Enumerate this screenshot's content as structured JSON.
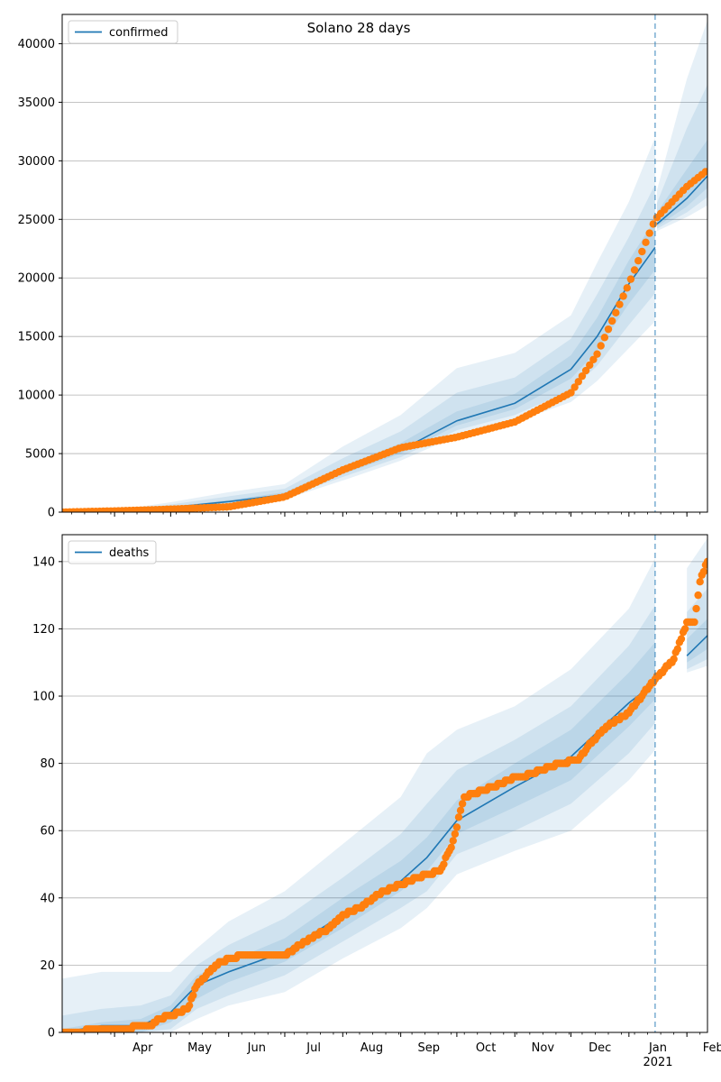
{
  "figure": {
    "title": "Solano 28 days"
  },
  "x_axis": {
    "months": [
      "Apr",
      "May",
      "Jun",
      "Jul",
      "Aug",
      "Sep",
      "Oct",
      "Nov",
      "Dec",
      "Jan",
      "Feb"
    ],
    "year_label": "2021"
  },
  "chart_data": [
    {
      "type": "line",
      "name": "confirmed",
      "legend": "confirmed",
      "legend_position": "upper-left",
      "x_range": [
        "2020-03-04",
        "2021-02-12"
      ],
      "y_range": [
        0,
        42500
      ],
      "y_ticks": [
        0,
        5000,
        10000,
        15000,
        20000,
        25000,
        30000,
        35000,
        40000
      ],
      "grid": "horizontal",
      "forecast_start": "2021-01-15",
      "model": {
        "dates": [
          "2020-03-04",
          "2020-04-01",
          "2020-05-01",
          "2020-06-01",
          "2020-07-01",
          "2020-08-01",
          "2020-09-01",
          "2020-10-01",
          "2020-11-01",
          "2020-12-01",
          "2020-12-15",
          "2021-01-01",
          "2021-01-15",
          "2021-01-16",
          "2021-02-01",
          "2021-02-12"
        ],
        "values": [
          0,
          100,
          400,
          900,
          1500,
          3500,
          5300,
          7800,
          9300,
          12200,
          15000,
          19500,
          22600,
          24600,
          26800,
          28700
        ],
        "bands": [
          {
            "lower": [
              0,
              80,
              250,
              600,
              1100,
              2700,
              4400,
              6500,
              7700,
              9400,
              11200,
              14000,
              16300,
              24000,
              25200,
              26200
            ],
            "upper": [
              0,
              150,
              850,
              1700,
              2400,
              5600,
              8300,
              12300,
              13600,
              16800,
              21300,
              26500,
              32000,
              27500,
              37000,
              42000
            ]
          },
          {
            "lower": [
              0,
              90,
              310,
              720,
              1250,
              3000,
              4700,
              7000,
              8300,
              10400,
              12500,
              16000,
              18700,
              24200,
              25600,
              26900
            ],
            "upper": [
              0,
              125,
              650,
              1350,
              2000,
              4600,
              6900,
              10200,
              11500,
              14800,
              18600,
              23500,
              28000,
              26400,
              32800,
              36500
            ]
          },
          {
            "lower": [
              0,
              95,
              360,
              820,
              1380,
              3250,
              5000,
              7400,
              8800,
              11400,
              13800,
              17800,
              20700,
              24400,
              26100,
              27700
            ],
            "upper": [
              0,
              110,
              470,
              1050,
              1700,
              3900,
              5900,
              8600,
              10100,
              13400,
              16600,
              21500,
              25000,
              25600,
              29300,
              31800
            ]
          }
        ]
      },
      "observed": {
        "dates": [
          "2020-03-04",
          "2020-04-01",
          "2020-05-01",
          "2020-06-01",
          "2020-07-01",
          "2020-08-01",
          "2020-09-01",
          "2020-10-01",
          "2020-11-01",
          "2020-12-01",
          "2020-12-15",
          "2021-01-01",
          "2021-01-15",
          "2021-02-01",
          "2021-02-12"
        ],
        "values": [
          0,
          100,
          250,
          450,
          1300,
          3600,
          5500,
          6400,
          7700,
          10200,
          13500,
          19500,
          25000,
          27800,
          29200
        ]
      }
    },
    {
      "type": "line",
      "name": "deaths",
      "legend": "deaths",
      "legend_position": "upper-left",
      "x_range": [
        "2020-03-04",
        "2021-02-12"
      ],
      "y_range": [
        0,
        148
      ],
      "y_ticks": [
        0,
        20,
        40,
        60,
        80,
        100,
        120,
        140
      ],
      "grid": "horizontal",
      "forecast_start": "2021-01-15",
      "model": {
        "dates": [
          "2020-03-04",
          "2020-03-25",
          "2020-04-15",
          "2020-05-01",
          "2020-05-15",
          "2020-06-01",
          "2020-07-01",
          "2020-08-01",
          "2020-09-01",
          "2020-09-15",
          "2020-10-01",
          "2020-11-01",
          "2020-12-01",
          "2021-01-01",
          "2021-01-15",
          "2021-02-01",
          "2021-02-12"
        ],
        "values": [
          0,
          2,
          2,
          6,
          14,
          18,
          24,
          35,
          45,
          52,
          63,
          73,
          82,
          98,
          104,
          112,
          118
        ],
        "bands": [
          {
            "lower": [
              0,
              0,
              0,
              0,
              4,
              8,
              12,
              22,
              31,
              37,
              47,
              54,
              60,
              75,
              84,
              107,
              109
            ],
            "upper": [
              16,
              18,
              18,
              18,
              25,
              33,
              42,
              56,
              70,
              83,
              90,
              97,
              108,
              126,
              141,
              138,
              147
            ]
          },
          {
            "lower": [
              0,
              0,
              0,
              1,
              7,
              11,
              17,
              27,
              37,
              42,
              53,
              60,
              68,
              83,
              92,
              108,
              111
            ],
            "upper": [
              5,
              7,
              8,
              11,
              20,
              26,
              34,
              46,
              59,
              68,
              78,
              87,
              97,
              115,
              127,
              125,
              132
            ]
          },
          {
            "lower": [
              0,
              0,
              0,
              3,
              10,
              15,
              21,
              31,
              42,
              48,
              59,
              67,
              75,
              91,
              99,
              110,
              114
            ],
            "upper": [
              1,
              3,
              4,
              8,
              17,
              21,
              28,
              40,
              51,
              58,
              69,
              80,
              90,
              107,
              116,
              117,
              123
            ]
          }
        ]
      },
      "observed": {
        "dates": [
          "2020-03-04",
          "2020-03-30",
          "2020-04-01",
          "2020-04-20",
          "2020-04-25",
          "2020-05-01",
          "2020-05-10",
          "2020-05-15",
          "2020-05-25",
          "2020-06-01",
          "2020-06-10",
          "2020-07-01",
          "2020-07-15",
          "2020-07-25",
          "2020-08-01",
          "2020-08-10",
          "2020-08-20",
          "2020-09-01",
          "2020-09-10",
          "2020-09-22",
          "2020-09-28",
          "2020-10-05",
          "2020-10-25",
          "2020-11-01",
          "2020-11-05",
          "2020-11-20",
          "2020-11-25",
          "2020-12-05",
          "2020-12-10",
          "2020-12-20",
          "2021-01-01",
          "2021-01-05",
          "2021-01-15",
          "2021-01-20",
          "2021-01-25",
          "2021-02-01",
          "2021-02-05",
          "2021-02-08",
          "2021-02-12"
        ],
        "values": [
          0,
          1,
          1,
          2,
          4,
          5,
          7,
          14,
          20,
          22,
          23,
          23,
          28,
          31,
          35,
          37,
          41,
          44,
          46,
          48,
          55,
          70,
          74,
          76,
          76,
          79,
          80,
          81,
          85,
          91,
          95,
          98,
          105,
          108,
          111,
          122,
          122,
          134,
          140
        ]
      }
    }
  ],
  "colors": {
    "line": "#1f77b4",
    "observed": "#ff7f0e",
    "band": "#1f77b4",
    "grid": "#b0b0b0",
    "forecast_marker": "#1f77b4"
  }
}
